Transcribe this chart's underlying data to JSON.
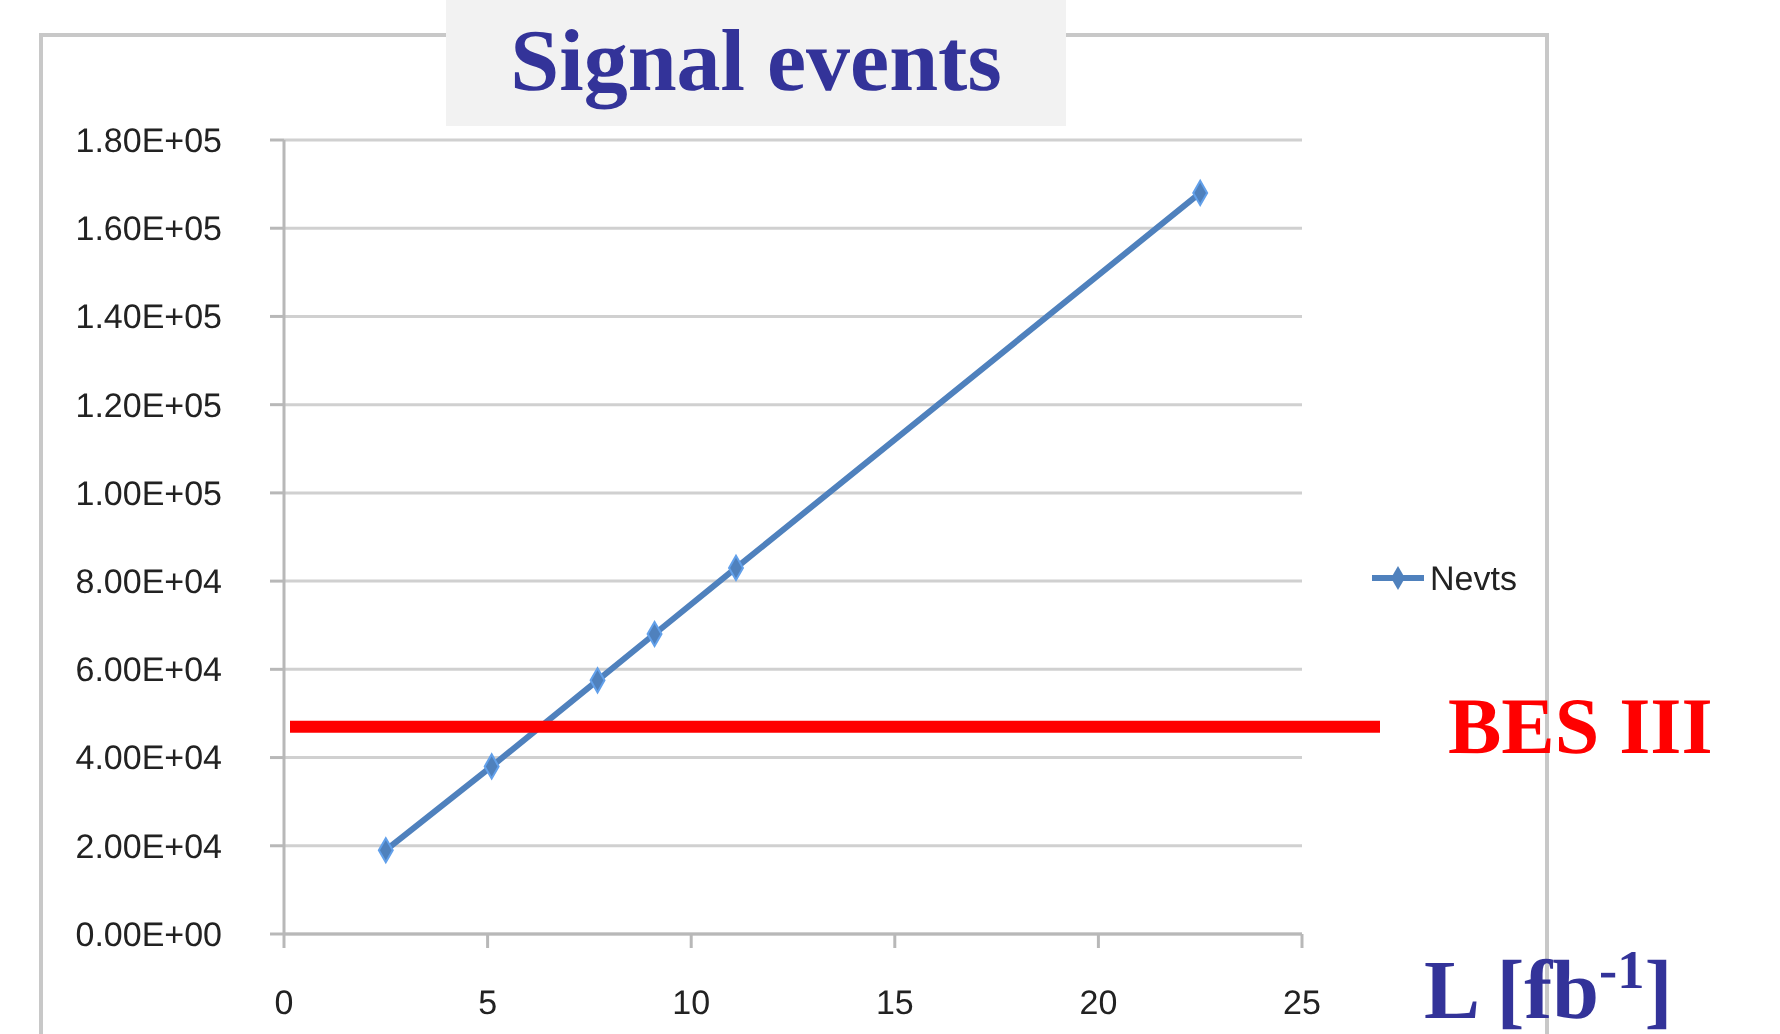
{
  "chart_data": {
    "type": "line",
    "title": "Signal events",
    "xlabel": "L [fb$^{-1}$]",
    "x": [
      2.5,
      5.1,
      7.7,
      9.1,
      11.1,
      22.5
    ],
    "series": [
      {
        "name": "Nevts",
        "color": "#4f81bd",
        "values": [
          19000,
          38000,
          57500,
          68000,
          83000,
          168000
        ]
      }
    ],
    "xlim": [
      0,
      25
    ],
    "xticks": [
      0,
      5,
      10,
      15,
      20,
      25
    ],
    "ylim": [
      0,
      180000
    ],
    "yticks": [
      {
        "value": 0,
        "label": "0.00E+00"
      },
      {
        "value": 20000,
        "label": "2.00E+04"
      },
      {
        "value": 40000,
        "label": "4.00E+04"
      },
      {
        "value": 60000,
        "label": "6.00E+04"
      },
      {
        "value": 80000,
        "label": "8.00E+04"
      },
      {
        "value": 100000,
        "label": "1.00E+05"
      },
      {
        "value": 120000,
        "label": "1.20E+05"
      },
      {
        "value": 140000,
        "label": "1.40E+05"
      },
      {
        "value": 160000,
        "label": "1.60E+05"
      },
      {
        "value": 180000,
        "label": "1.80E+05"
      }
    ],
    "ref_lines": [
      {
        "axis": "y",
        "value": 47000,
        "label": "BES III",
        "color": "#ff0000"
      }
    ],
    "grid": "y",
    "legend": "right",
    "marker": "diamond",
    "line_style": "solid"
  }
}
